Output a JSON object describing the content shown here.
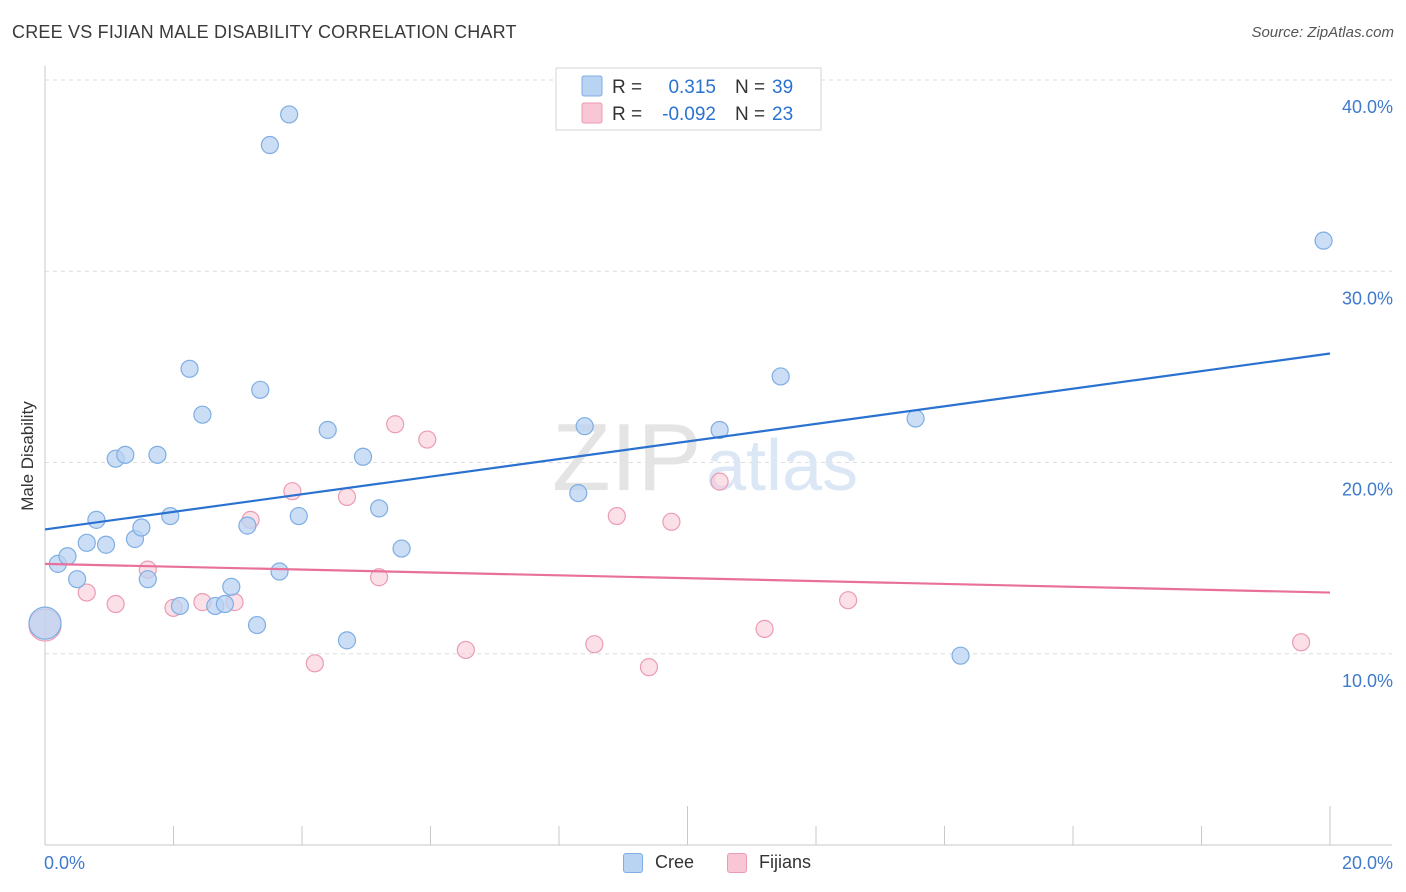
{
  "title": "CREE VS FIJIAN MALE DISABILITY CORRELATION CHART",
  "source": "Source: ZipAtlas.com",
  "watermark": {
    "zip": "ZIP",
    "atlas": "atlas"
  },
  "colors": {
    "cree_fill": "#b9d3f3",
    "cree_stroke": "#7eaee3",
    "cree_line": "#2a72d0",
    "fijians_fill": "#f8c6d5",
    "fijians_stroke": "#ec9bb4",
    "fijians_line": "#e8709a",
    "axis_text": "#3f7acb",
    "grid": "#dddddd"
  },
  "legend_top": {
    "rows": [
      {
        "r_label": "R =",
        "r_value": "0.315",
        "n_label": "N =",
        "n_value": "39"
      },
      {
        "r_label": "R =",
        "r_value": "-0.092",
        "n_label": "N =",
        "n_value": "23"
      }
    ]
  },
  "chart_data": {
    "type": "scatter",
    "title": "CREE VS FIJIAN MALE DISABILITY CORRELATION CHART",
    "xlabel": "",
    "ylabel": "Male Disability",
    "xlim": [
      0,
      20
    ],
    "ylim": [
      0,
      40
    ],
    "x_tick_labels": [
      "0.0%",
      "20.0%"
    ],
    "y_ticks": [
      10,
      20,
      30,
      40
    ],
    "y_tick_labels": [
      "10.0%",
      "20.0%",
      "30.0%",
      "40.0%"
    ],
    "grid": true,
    "legend": [
      "Cree",
      "Fijians"
    ],
    "legend_position": "bottom",
    "series": [
      {
        "name": "Cree",
        "r": 0.315,
        "n": 39,
        "trend": {
          "x": [
            0,
            20
          ],
          "y": [
            16.5,
            25.7
          ]
        },
        "points": [
          [
            0.0,
            11.6
          ],
          [
            0.2,
            14.7
          ],
          [
            0.35,
            15.1
          ],
          [
            0.5,
            13.9
          ],
          [
            0.65,
            15.8
          ],
          [
            0.8,
            17.0
          ],
          [
            0.95,
            15.7
          ],
          [
            1.1,
            20.2
          ],
          [
            1.25,
            20.4
          ],
          [
            1.4,
            16.0
          ],
          [
            1.5,
            16.6
          ],
          [
            1.6,
            13.9
          ],
          [
            1.75,
            20.4
          ],
          [
            1.95,
            17.2
          ],
          [
            2.1,
            12.5
          ],
          [
            2.25,
            24.9
          ],
          [
            2.45,
            22.5
          ],
          [
            2.65,
            12.5
          ],
          [
            2.8,
            12.6
          ],
          [
            2.9,
            13.5
          ],
          [
            3.15,
            16.7
          ],
          [
            3.3,
            11.5
          ],
          [
            3.35,
            23.8
          ],
          [
            3.5,
            36.6
          ],
          [
            3.65,
            14.3
          ],
          [
            3.8,
            38.2
          ],
          [
            3.95,
            17.2
          ],
          [
            4.4,
            21.7
          ],
          [
            4.7,
            10.7
          ],
          [
            4.95,
            20.3
          ],
          [
            5.2,
            17.6
          ],
          [
            5.55,
            15.5
          ],
          [
            8.3,
            18.4
          ],
          [
            8.4,
            21.9
          ],
          [
            10.5,
            21.7
          ],
          [
            11.45,
            24.5
          ],
          [
            13.55,
            22.3
          ],
          [
            14.25,
            9.9
          ],
          [
            19.9,
            31.6
          ]
        ]
      },
      {
        "name": "Fijians",
        "r": -0.092,
        "n": 23,
        "trend": {
          "x": [
            0,
            20
          ],
          "y": [
            14.7,
            13.2
          ]
        },
        "points": [
          [
            0.0,
            11.5
          ],
          [
            0.65,
            13.2
          ],
          [
            1.1,
            12.6
          ],
          [
            1.6,
            14.4
          ],
          [
            2.0,
            12.4
          ],
          [
            2.45,
            12.7
          ],
          [
            2.95,
            12.7
          ],
          [
            3.2,
            17.0
          ],
          [
            4.2,
            9.5
          ],
          [
            3.85,
            18.5
          ],
          [
            4.7,
            18.2
          ],
          [
            5.2,
            14.0
          ],
          [
            5.45,
            22.0
          ],
          [
            5.95,
            21.2
          ],
          [
            6.55,
            10.2
          ],
          [
            8.55,
            10.5
          ],
          [
            8.9,
            17.2
          ],
          [
            9.4,
            9.3
          ],
          [
            9.75,
            16.9
          ],
          [
            10.5,
            19.0
          ],
          [
            11.2,
            11.3
          ],
          [
            12.5,
            12.8
          ],
          [
            19.55,
            10.6
          ]
        ]
      }
    ]
  }
}
